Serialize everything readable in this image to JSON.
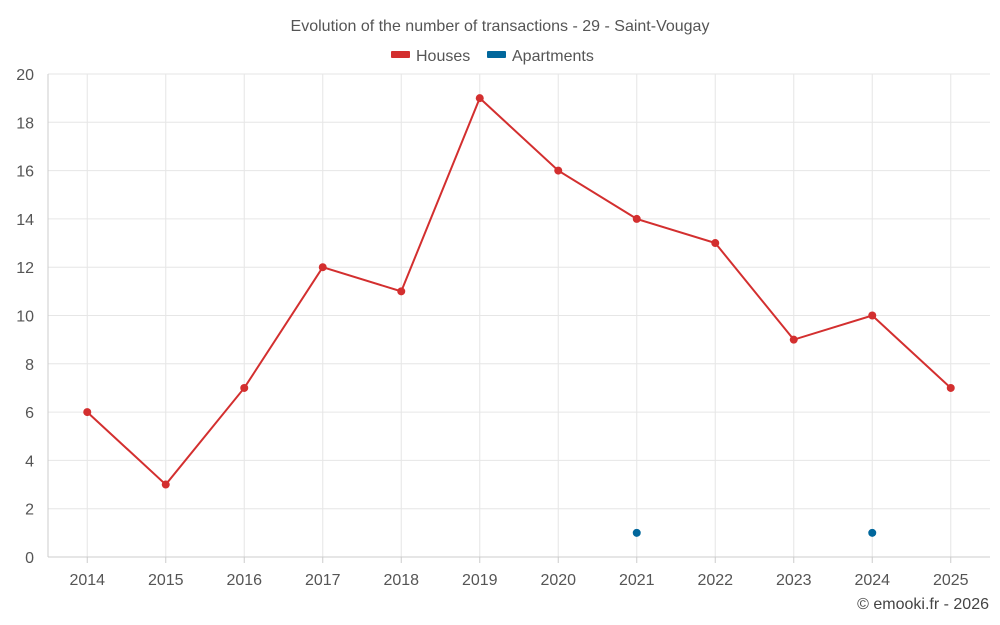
{
  "chart_data": {
    "type": "line",
    "title": "Evolution of the number of transactions - 29 - Saint-Vougay",
    "x": [
      "2014",
      "2015",
      "2016",
      "2017",
      "2018",
      "2019",
      "2020",
      "2021",
      "2022",
      "2023",
      "2024",
      "2025"
    ],
    "ylim": [
      0,
      20
    ],
    "yticks": [
      "0",
      "2",
      "4",
      "6",
      "8",
      "10",
      "12",
      "14",
      "16",
      "18",
      "20"
    ],
    "grid": true,
    "legend_position": "top-center",
    "series": [
      {
        "name": "Houses",
        "color": "#d32f2f",
        "values": [
          6,
          3,
          7,
          12,
          11,
          19,
          16,
          14,
          13,
          9,
          10,
          7
        ]
      },
      {
        "name": "Apartments",
        "color": "#01679c",
        "values": [
          null,
          null,
          null,
          null,
          null,
          null,
          null,
          1,
          null,
          null,
          1,
          null
        ]
      }
    ],
    "credit": "© emooki.fr - 2026"
  }
}
